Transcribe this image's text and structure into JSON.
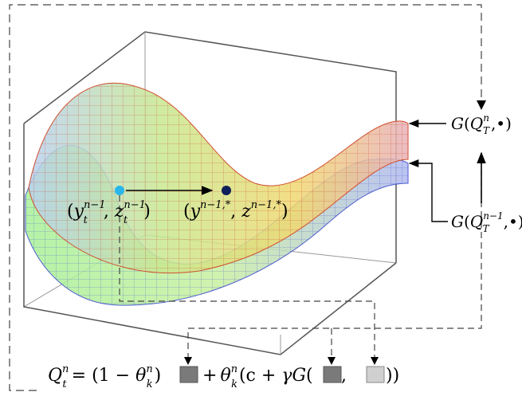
{
  "labels": {
    "point_start": {
      "open": "(",
      "y": "y",
      "y_sup": "n−1",
      "y_sub": "t",
      "comma": ", ",
      "z": "z",
      "z_sup": "n−1",
      "z_sub": "t",
      "close": ")"
    },
    "point_end": {
      "open": "(",
      "y": "y",
      "y_sup": "n−1,*",
      "comma": ", ",
      "z": "z",
      "z_sup": "n−1,*",
      "close": ")"
    },
    "surface_upper": {
      "G": "G",
      "Q": "Q",
      "sup": "n",
      "sub": "T",
      "tail": ",•)",
      "open": "("
    },
    "surface_lower": {
      "G": "G",
      "Q": "Q",
      "sup": "n−1",
      "sub": "T",
      "tail": ",•)",
      "open": "("
    }
  },
  "equation": {
    "lhs": "Q",
    "lhs_sup": "n",
    "lhs_sub": "t",
    "eq_open": "= (1 − ",
    "theta": "θ",
    "theta_sup": "n",
    "theta_sub": "k",
    "close1": ")",
    "plus": "+",
    "theta2": "θ",
    "theta2_sup": "n",
    "theta2_sub": "k",
    "mid": "(c + ",
    "gamma": "γ",
    "G": "G",
    "open2": "(",
    "sep": " ,",
    "close2": "))"
  },
  "colors": {
    "surface_top": "#f0d870",
    "surface_side": "#b8c8f0",
    "surface_green": "#a8f098",
    "grid_red": "#d05030",
    "grid_blue": "#4a5ad0",
    "point_start": "#29b6e8",
    "point_end": "#101e5a",
    "box_dark": "#7a7a7a",
    "box_light": "#d0d0d0"
  }
}
